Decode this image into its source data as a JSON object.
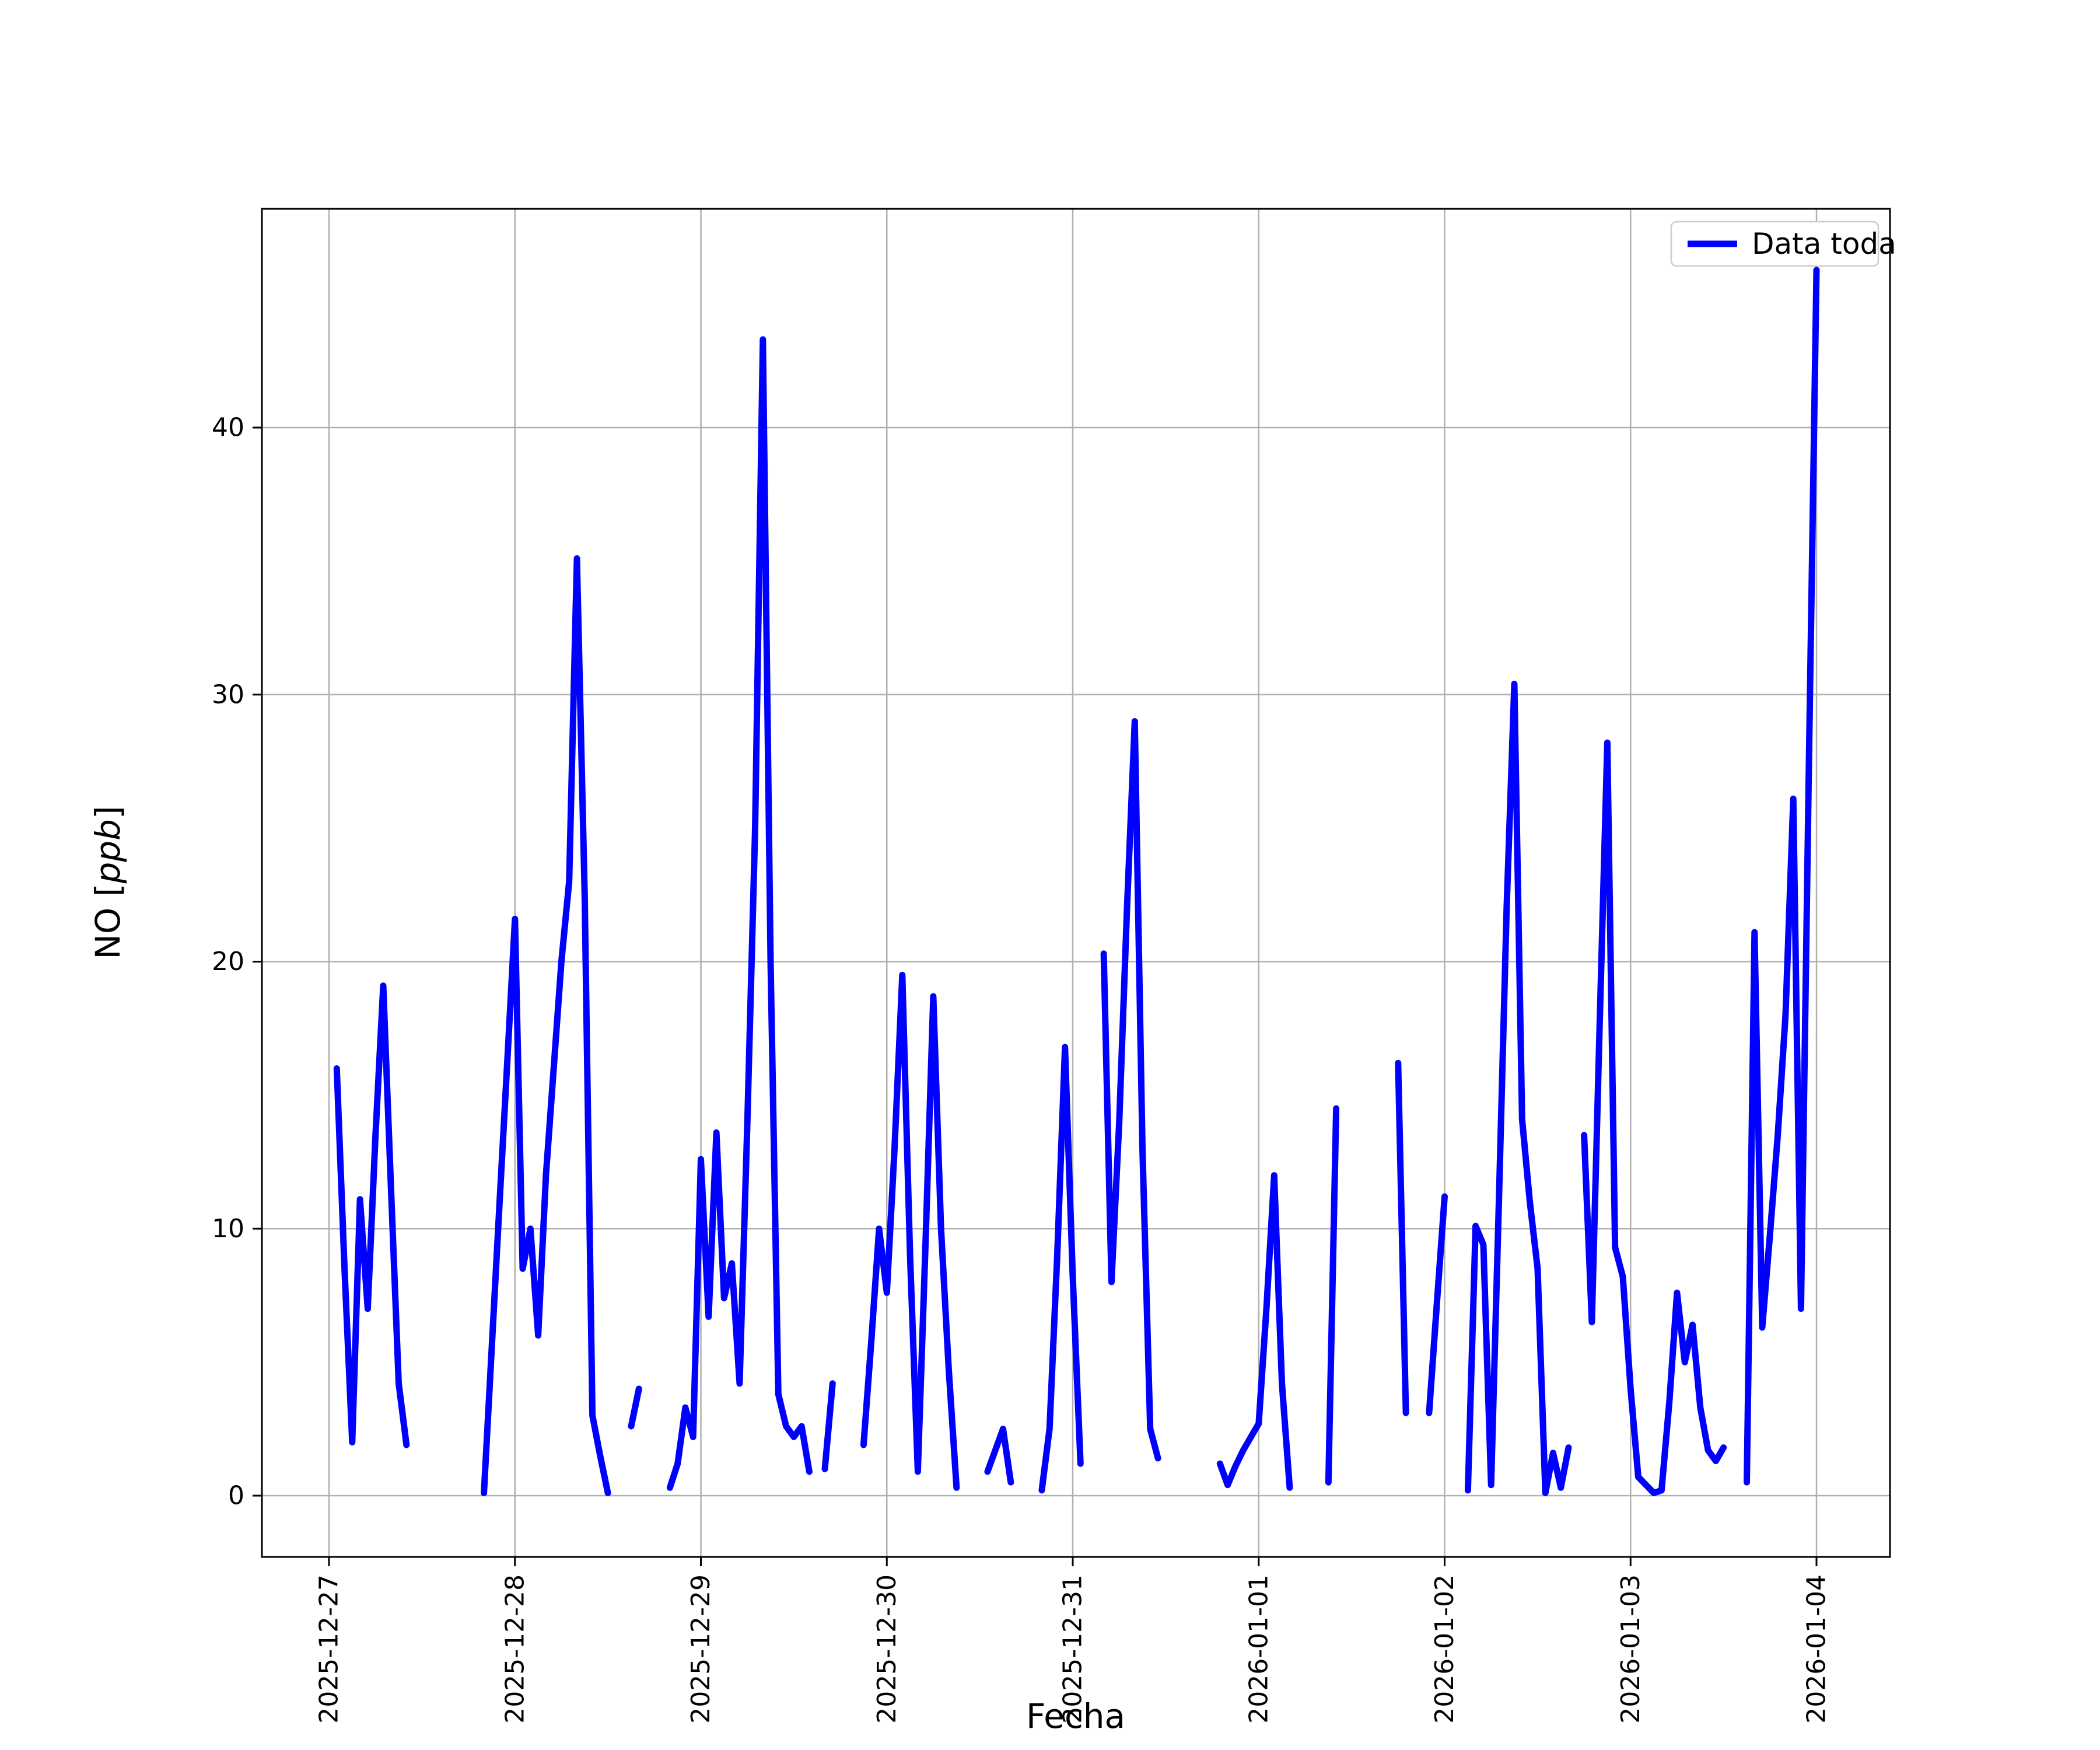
{
  "chart_data": {
    "type": "line",
    "title": "",
    "xlabel": "Fecha",
    "ylabel": "NO [ppb]",
    "ylabel_parts": {
      "prefix": "NO [",
      "italic": "ppb",
      "suffix": "]"
    },
    "legend": {
      "position": "upper right",
      "entries": [
        {
          "label": "Data toda",
          "color": "#0000ff"
        }
      ]
    },
    "grid": true,
    "ylim": [
      -2.3,
      48.2
    ],
    "yticks": [
      {
        "value": 0,
        "label": "0"
      },
      {
        "value": 10,
        "label": "10"
      },
      {
        "value": 20,
        "label": "20"
      },
      {
        "value": 30,
        "label": "30"
      },
      {
        "value": 40,
        "label": "40"
      }
    ],
    "xticks": [
      {
        "offset_hours": 0,
        "label": "2025-12-27"
      },
      {
        "offset_hours": 24,
        "label": "2025-12-28"
      },
      {
        "offset_hours": 48,
        "label": "2025-12-29"
      },
      {
        "offset_hours": 72,
        "label": "2025-12-30"
      },
      {
        "offset_hours": 96,
        "label": "2025-12-31"
      },
      {
        "offset_hours": 120,
        "label": "2026-01-01"
      },
      {
        "offset_hours": 144,
        "label": "2026-01-02"
      },
      {
        "offset_hours": 168,
        "label": "2026-01-03"
      },
      {
        "offset_hours": 192,
        "label": "2026-01-04"
      }
    ],
    "x_origin": "2025-12-27T00:00",
    "x_unit": "hours",
    "series": [
      {
        "name": "Data toda",
        "color": "#0000ff",
        "points": [
          [
            1,
            16.0
          ],
          [
            2,
            8.5
          ],
          [
            3,
            2.0
          ],
          [
            4,
            11.1
          ],
          [
            5,
            7.0
          ],
          [
            6,
            13.5
          ],
          [
            7,
            19.1
          ],
          [
            8,
            11.5
          ],
          [
            9,
            4.2
          ],
          [
            10,
            1.9
          ],
          [
            20,
            0.1
          ],
          [
            21,
            5.5
          ],
          [
            22,
            10.9
          ],
          [
            23,
            16.2
          ],
          [
            24,
            21.6
          ],
          [
            25,
            8.5
          ],
          [
            26,
            10.0
          ],
          [
            27,
            6.0
          ],
          [
            28,
            12.0
          ],
          [
            29,
            16.0
          ],
          [
            30,
            20.0
          ],
          [
            31,
            23.0
          ],
          [
            32,
            35.1
          ],
          [
            33,
            22.5
          ],
          [
            34,
            3.0
          ],
          [
            35,
            1.5
          ],
          [
            36,
            0.1
          ],
          [
            39,
            2.6
          ],
          [
            40,
            4.0
          ],
          [
            44,
            0.3
          ],
          [
            45,
            1.2
          ],
          [
            46,
            3.3
          ],
          [
            47,
            2.2
          ],
          [
            48,
            12.6
          ],
          [
            49,
            6.7
          ],
          [
            50,
            13.6
          ],
          [
            51,
            7.4
          ],
          [
            52,
            8.7
          ],
          [
            53,
            4.2
          ],
          [
            54,
            14.0
          ],
          [
            55,
            25.0
          ],
          [
            56,
            43.3
          ],
          [
            57,
            20.0
          ],
          [
            58,
            3.8
          ],
          [
            59,
            2.6
          ],
          [
            60,
            2.2
          ],
          [
            61,
            2.6
          ],
          [
            62,
            0.9
          ],
          [
            64,
            1.0
          ],
          [
            65,
            4.2
          ],
          [
            69,
            1.9
          ],
          [
            70,
            5.8
          ],
          [
            71,
            10.0
          ],
          [
            72,
            7.6
          ],
          [
            73,
            13.0
          ],
          [
            74,
            19.5
          ],
          [
            75,
            9.0
          ],
          [
            76,
            0.9
          ],
          [
            77,
            9.5
          ],
          [
            78,
            18.7
          ],
          [
            79,
            10.0
          ],
          [
            80,
            4.7
          ],
          [
            81,
            0.3
          ],
          [
            85,
            0.9
          ],
          [
            86,
            1.7
          ],
          [
            87,
            2.5
          ],
          [
            88,
            0.5
          ],
          [
            92,
            0.2
          ],
          [
            93,
            2.5
          ],
          [
            94,
            9.0
          ],
          [
            95,
            16.8
          ],
          [
            96,
            8.2
          ],
          [
            97,
            1.2
          ],
          [
            100,
            20.3
          ],
          [
            101,
            8.0
          ],
          [
            102,
            14.0
          ],
          [
            103,
            22.0
          ],
          [
            104,
            29.0
          ],
          [
            105,
            13.0
          ],
          [
            106,
            2.5
          ],
          [
            107,
            1.4
          ],
          [
            115,
            1.2
          ],
          [
            116,
            0.4
          ],
          [
            117,
            1.1
          ],
          [
            118,
            1.7
          ],
          [
            119,
            2.2
          ],
          [
            120,
            2.7
          ],
          [
            121,
            7.0
          ],
          [
            122,
            12.0
          ],
          [
            123,
            4.2
          ],
          [
            124,
            0.3
          ],
          [
            129,
            0.5
          ],
          [
            130,
            14.5
          ],
          [
            138,
            16.2
          ],
          [
            139,
            3.1
          ],
          [
            142,
            3.1
          ],
          [
            143,
            7.2
          ],
          [
            144,
            11.2
          ],
          [
            147,
            0.2
          ],
          [
            148,
            10.1
          ],
          [
            149,
            9.4
          ],
          [
            150,
            0.4
          ],
          [
            151,
            11.0
          ],
          [
            152,
            22.0
          ],
          [
            153,
            30.4
          ],
          [
            154,
            14.1
          ],
          [
            155,
            11.0
          ],
          [
            156,
            8.5
          ],
          [
            157,
            0.1
          ],
          [
            158,
            1.6
          ],
          [
            159,
            0.3
          ],
          [
            160,
            1.8
          ],
          [
            162,
            13.5
          ],
          [
            163,
            6.5
          ],
          [
            164,
            17.5
          ],
          [
            165,
            28.2
          ],
          [
            166,
            9.3
          ],
          [
            167,
            8.2
          ],
          [
            168,
            4.0
          ],
          [
            169,
            0.7
          ],
          [
            170,
            0.4
          ],
          [
            171,
            0.1
          ],
          [
            172,
            0.2
          ],
          [
            173,
            3.5
          ],
          [
            174,
            7.6
          ],
          [
            175,
            5.0
          ],
          [
            176,
            6.4
          ],
          [
            177,
            3.3
          ],
          [
            178,
            1.7
          ],
          [
            179,
            1.3
          ],
          [
            180,
            1.8
          ],
          [
            183,
            0.5
          ],
          [
            184,
            21.1
          ],
          [
            185,
            6.3
          ],
          [
            186,
            9.8
          ],
          [
            187,
            13.5
          ],
          [
            188,
            18.0
          ],
          [
            189,
            26.1
          ],
          [
            190,
            7.0
          ],
          [
            191,
            27.0
          ],
          [
            192,
            45.9
          ]
        ]
      }
    ],
    "colors": {
      "line": "#0000ff",
      "grid": "#b0b0b0",
      "spine": "#000000",
      "legend_border": "#cccccc",
      "background": "#ffffff"
    }
  }
}
